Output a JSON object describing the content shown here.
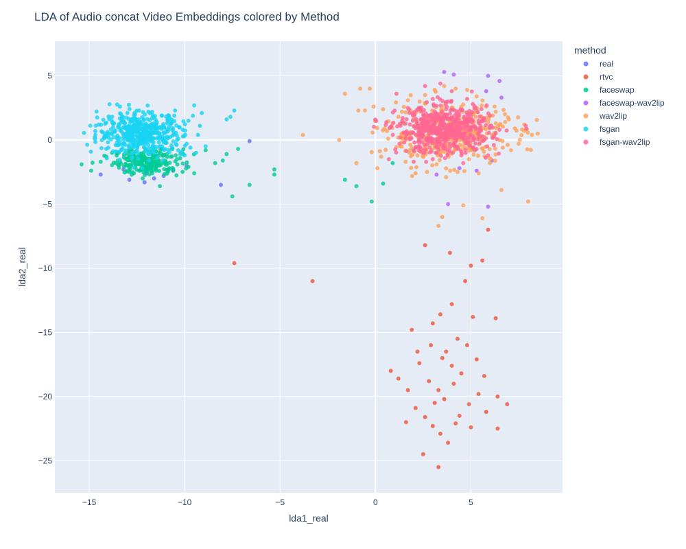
{
  "chart_data": {
    "type": "scatter",
    "title": "LDA of Audio concat Video Embeddings colored by Method",
    "xlabel": "lda1_real",
    "ylabel": "lda2_real",
    "xlim": [
      -16.8,
      9.8
    ],
    "ylim": [
      -27.5,
      7.7
    ],
    "x_ticks": [
      -15,
      -10,
      -5,
      0,
      5
    ],
    "y_ticks": [
      5,
      0,
      -5,
      -10,
      -15,
      -20,
      -25
    ],
    "x_tick_labels": [
      "−15",
      "−10",
      "−5",
      "0",
      "5"
    ],
    "y_tick_labels": [
      "5",
      "0",
      "−5",
      "−10",
      "−15",
      "−20",
      "−25"
    ],
    "grid": true,
    "legend_placement": "right",
    "legend_title": "method",
    "series": [
      {
        "name": "real",
        "color": "#636efa",
        "points": [
          [
            -14.4,
            -2.7
          ],
          [
            -12.9,
            -3.1
          ],
          [
            -12.1,
            -3.3
          ],
          [
            -11.6,
            -3.0
          ],
          [
            -13.2,
            -2.3
          ],
          [
            -10.6,
            -2.4
          ],
          [
            -9.9,
            -2.0
          ],
          [
            -6.6,
            -0.1
          ],
          [
            -12.0,
            -2.6
          ],
          [
            -11.1,
            -2.8
          ],
          [
            -8.1,
            -3.5
          ]
        ]
      },
      {
        "name": "rtvc",
        "color": "#ef553b",
        "points": [
          [
            -7.4,
            -9.6
          ],
          [
            -3.3,
            -11.0
          ],
          [
            2.6,
            -8.2
          ],
          [
            3.9,
            -8.8
          ],
          [
            5.0,
            -9.8
          ],
          [
            5.6,
            -9.4
          ],
          [
            5.9,
            -7.0
          ],
          [
            3.0,
            -14.3
          ],
          [
            3.4,
            -13.6
          ],
          [
            4.0,
            -12.8
          ],
          [
            4.7,
            -11.0
          ],
          [
            5.1,
            -13.8
          ],
          [
            6.3,
            -13.9
          ],
          [
            1.9,
            -14.8
          ],
          [
            0.8,
            -18.0
          ],
          [
            1.2,
            -18.6
          ],
          [
            2.3,
            -17.4
          ],
          [
            2.8,
            -18.8
          ],
          [
            3.3,
            -19.5
          ],
          [
            3.6,
            -20.2
          ],
          [
            4.1,
            -19.0
          ],
          [
            4.5,
            -18.2
          ],
          [
            4.9,
            -20.6
          ],
          [
            5.4,
            -19.8
          ],
          [
            5.8,
            -21.2
          ],
          [
            6.4,
            -20.0
          ],
          [
            6.9,
            -20.6
          ],
          [
            2.1,
            -20.9
          ],
          [
            2.6,
            -21.6
          ],
          [
            3.0,
            -22.3
          ],
          [
            3.4,
            -22.9
          ],
          [
            3.8,
            -23.6
          ],
          [
            4.2,
            -22.1
          ],
          [
            2.5,
            -24.5
          ],
          [
            3.3,
            -25.5
          ],
          [
            4.4,
            -21.5
          ],
          [
            5.0,
            -22.4
          ],
          [
            1.6,
            -22.0
          ],
          [
            1.7,
            -19.5
          ],
          [
            3.7,
            -16.5
          ],
          [
            4.3,
            -15.5
          ],
          [
            2.9,
            -16.0
          ],
          [
            5.3,
            -17.1
          ],
          [
            5.7,
            -18.4
          ],
          [
            6.4,
            -22.5
          ],
          [
            3.5,
            -17.0
          ],
          [
            4.0,
            -17.6
          ],
          [
            2.2,
            -16.5
          ],
          [
            4.8,
            -16.0
          ],
          [
            3.1,
            -20.5
          ]
        ]
      },
      {
        "name": "faceswap",
        "color": "#00cc96",
        "points": [
          [
            -15.4,
            -1.9
          ],
          [
            -14.9,
            -2.4
          ],
          [
            -14.1,
            -1.3
          ],
          [
            -13.5,
            -1.6
          ],
          [
            -13.0,
            -2.0
          ],
          [
            -12.6,
            -1.8
          ],
          [
            -12.3,
            -1.4
          ],
          [
            -11.9,
            -2.1
          ],
          [
            -11.5,
            -1.7
          ],
          [
            -11.1,
            -1.2
          ],
          [
            -10.8,
            -2.2
          ],
          [
            -10.4,
            -1.5
          ],
          [
            -12.9,
            -2.5
          ],
          [
            -11.7,
            -2.6
          ],
          [
            -11.3,
            -3.6
          ],
          [
            -12.2,
            -3.0
          ],
          [
            -9.5,
            -2.6
          ],
          [
            -8.4,
            -1.8
          ],
          [
            -7.8,
            -1.1
          ],
          [
            -7.2,
            -0.7
          ],
          [
            -7.5,
            -4.4
          ],
          [
            -6.6,
            -3.5
          ],
          [
            -5.3,
            -2.3
          ],
          [
            -5.3,
            -2.7
          ],
          [
            -1.6,
            -3.1
          ],
          [
            -1.0,
            -3.6
          ],
          [
            -0.2,
            -4.8
          ],
          [
            0.4,
            -3.4
          ],
          [
            0.9,
            -1.8
          ],
          [
            -13.8,
            -1.0
          ],
          [
            -12.7,
            -1.2
          ],
          [
            -11.0,
            -1.9
          ],
          [
            -10.2,
            -1.0
          ],
          [
            -8.9,
            -0.8
          ],
          [
            -8.0,
            -1.6
          ],
          [
            -14.4,
            -1.7
          ]
        ]
      },
      {
        "name": "faceswap-wav2lip",
        "color": "#ab63fa",
        "points": [
          [
            3.6,
            5.3
          ],
          [
            4.1,
            5.1
          ],
          [
            5.9,
            5.0
          ],
          [
            6.5,
            4.6
          ],
          [
            6.6,
            3.3
          ],
          [
            5.8,
            3.8
          ],
          [
            2.5,
            1.5
          ],
          [
            2.0,
            -0.8
          ],
          [
            3.8,
            -5.0
          ],
          [
            5.9,
            -5.2
          ],
          [
            6.1,
            -1.6
          ],
          [
            5.3,
            -2.4
          ],
          [
            4.4,
            -2.2
          ],
          [
            3.2,
            -2.7
          ],
          [
            2.8,
            1.9
          ]
        ]
      },
      {
        "name": "wav2lip",
        "color": "#ffa15a",
        "points": [
          [
            -3.8,
            0.4
          ],
          [
            -1.9,
            0.0
          ],
          [
            -1.6,
            3.6
          ],
          [
            -1.0,
            -1.8
          ],
          [
            -0.9,
            2.3
          ],
          [
            -0.8,
            4.0
          ],
          [
            -0.3,
            4.0
          ],
          [
            -0.1,
            2.6
          ],
          [
            0.1,
            -2.2
          ],
          [
            0.3,
            -1.3
          ],
          [
            0.6,
            0.7
          ],
          [
            0.9,
            1.3
          ],
          [
            1.3,
            -0.5
          ],
          [
            1.7,
            3.1
          ],
          [
            2.1,
            -2.6
          ],
          [
            2.6,
            3.5
          ],
          [
            3.1,
            3.9
          ],
          [
            3.6,
            4.2
          ],
          [
            4.2,
            4.0
          ],
          [
            4.8,
            3.9
          ],
          [
            5.3,
            3.4
          ],
          [
            5.8,
            2.6
          ],
          [
            6.3,
            2.2
          ],
          [
            6.8,
            1.4
          ],
          [
            7.3,
            0.9
          ],
          [
            7.8,
            1.2
          ],
          [
            8.2,
            0.4
          ],
          [
            8.0,
            -4.8
          ],
          [
            7.1,
            -0.8
          ],
          [
            6.6,
            -3.9
          ],
          [
            6.0,
            -1.8
          ],
          [
            5.4,
            -2.6
          ],
          [
            4.9,
            -1.5
          ],
          [
            4.3,
            -2.5
          ],
          [
            3.7,
            -2.9
          ],
          [
            3.2,
            -1.9
          ],
          [
            2.7,
            -2.5
          ],
          [
            2.2,
            -1.2
          ],
          [
            1.8,
            -0.8
          ],
          [
            1.4,
            0.5
          ],
          [
            3.5,
            -6.0
          ],
          [
            3.3,
            -6.7
          ],
          [
            5.6,
            -6.1
          ],
          [
            4.6,
            -5.1
          ],
          [
            1.2,
            1.8
          ],
          [
            0.4,
            2.4
          ],
          [
            8.5,
            0.5
          ],
          [
            7.5,
            -0.3
          ]
        ]
      },
      {
        "name": "fsgan",
        "color": "#19d3f3",
        "points": [
          [
            -14.5,
            1.2
          ],
          [
            -14.3,
            0.6
          ],
          [
            -14.0,
            -0.6
          ],
          [
            -13.8,
            1.8
          ],
          [
            -13.5,
            0.2
          ],
          [
            -13.2,
            1.0
          ],
          [
            -12.9,
            -0.4
          ],
          [
            -12.6,
            0.7
          ],
          [
            -12.4,
            1.6
          ],
          [
            -12.2,
            -0.1
          ],
          [
            -12.0,
            0.9
          ],
          [
            -11.8,
            0.3
          ],
          [
            -11.5,
            1.2
          ],
          [
            -11.3,
            -0.5
          ],
          [
            -11.0,
            0.6
          ],
          [
            -10.7,
            1.4
          ],
          [
            -10.4,
            0.0
          ],
          [
            -10.1,
            0.8
          ],
          [
            -9.8,
            1.5
          ],
          [
            -9.5,
            2.7
          ],
          [
            -9.1,
            2.1
          ],
          [
            -9.3,
            0.4
          ],
          [
            -8.9,
            -0.5
          ],
          [
            -9.4,
            -1.0
          ],
          [
            -7.6,
            1.8
          ],
          [
            -7.4,
            2.3
          ],
          [
            -7.8,
            1.6
          ],
          [
            -12.8,
            0.1
          ],
          [
            -12.5,
            -0.8
          ],
          [
            -13.0,
            2.1
          ],
          [
            -11.9,
            2.2
          ],
          [
            -11.2,
            1.9
          ],
          [
            -10.5,
            2.3
          ],
          [
            -13.6,
            -0.9
          ],
          [
            -14.7,
            0.2
          ],
          [
            -10.0,
            -1.2
          ],
          [
            -9.7,
            -0.6
          ],
          [
            -9.2,
            1.1
          ],
          [
            -11.6,
            -1.0
          ],
          [
            -12.3,
            0.5
          ],
          [
            -11.7,
            1.7
          ],
          [
            -13.3,
            1.5
          ]
        ]
      },
      {
        "name": "fsgan-wav2lip",
        "color": "#ff6692",
        "points": [
          [
            0.8,
            1.0
          ],
          [
            1.3,
            0.2
          ],
          [
            1.7,
            2.5
          ],
          [
            2.1,
            -0.6
          ],
          [
            2.4,
            1.6
          ],
          [
            2.8,
            0.5
          ],
          [
            3.0,
            3.2
          ],
          [
            3.2,
            -1.0
          ],
          [
            3.5,
            1.2
          ],
          [
            3.7,
            2.4
          ],
          [
            3.9,
            -0.3
          ],
          [
            4.1,
            0.9
          ],
          [
            4.3,
            2.0
          ],
          [
            4.5,
            -1.2
          ],
          [
            4.7,
            1.5
          ],
          [
            4.9,
            0.2
          ],
          [
            5.1,
            2.8
          ],
          [
            5.3,
            -0.7
          ],
          [
            5.5,
            1.1
          ],
          [
            5.7,
            0.0
          ],
          [
            6.0,
            1.9
          ],
          [
            6.2,
            -0.4
          ],
          [
            2.6,
            4.2
          ],
          [
            3.4,
            4.4
          ],
          [
            4.0,
            3.8
          ],
          [
            1.1,
            3.6
          ],
          [
            0.7,
            -1.5
          ],
          [
            2.0,
            -1.7
          ],
          [
            3.0,
            -1.5
          ],
          [
            4.6,
            -1.8
          ],
          [
            6.5,
            0.8
          ],
          [
            5.9,
            -1.2
          ],
          [
            3.6,
            0.5
          ],
          [
            4.2,
            1.4
          ],
          [
            2.9,
            1.9
          ],
          [
            3.3,
            0.0
          ],
          [
            4.4,
            0.6
          ],
          [
            5.0,
            1.8
          ],
          [
            2.3,
            0.9
          ],
          [
            1.5,
            -0.2
          ],
          [
            3.8,
            3.0
          ],
          [
            4.8,
            3.2
          ]
        ]
      }
    ]
  }
}
